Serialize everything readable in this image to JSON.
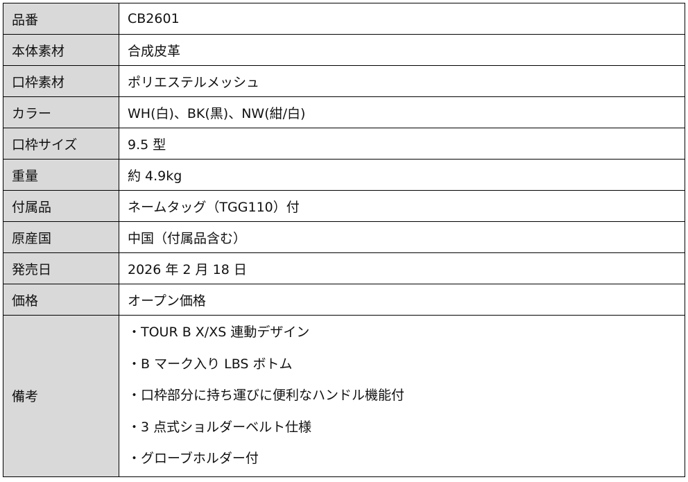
{
  "colors": {
    "label_bg": "#d9d9d9",
    "border": "#000000"
  },
  "rows": [
    {
      "label": "品番",
      "value": "CB2601"
    },
    {
      "label": "本体素材",
      "value": "合成皮革"
    },
    {
      "label": "口枠素材",
      "value": "ポリエステルメッシュ"
    },
    {
      "label": "カラー",
      "value": "WH(白)、BK(黒)、NW(紺/白)"
    },
    {
      "label": "口枠サイズ",
      "value": "9.5 型"
    },
    {
      "label": "重量",
      "value": "約 4.9kg"
    },
    {
      "label": "付属品",
      "value": "ネームタッグ（TGG110）付"
    },
    {
      "label": "原産国",
      "value": "中国（付属品含む）"
    },
    {
      "label": "発売日",
      "value": "2026 年 2 月 18 日"
    },
    {
      "label": "価格",
      "value": "オープン価格"
    }
  ],
  "notes": {
    "label": "備考",
    "items": [
      "・TOUR B X/XS 連動デザイン",
      "・B マーク入り LBS ボトム",
      "・口枠部分に持ち運びに便利なハンドル機能付",
      "・3 点式ショルダーベルト仕様",
      "・グローブホルダー付"
    ]
  }
}
